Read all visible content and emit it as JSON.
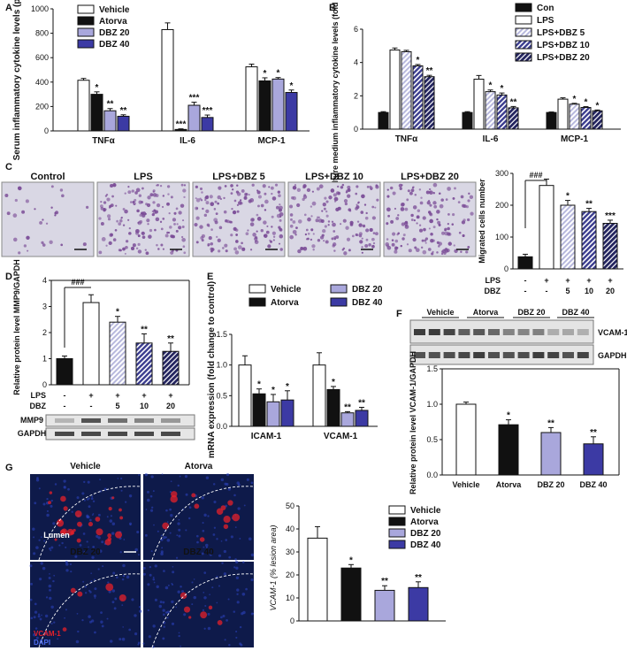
{
  "colors": {
    "white": "#ffffff",
    "black": "#111111",
    "light_purple": "#a9a7dc",
    "dark_purple": "#3c3aa4",
    "stripe_light": "#b7b8dd",
    "stripe_dark": "#3b3d8f",
    "micro_bg": "#d9d7e4",
    "micro_cell": "#7a4b96",
    "fluor_bg": "#0e1a4a",
    "fluor_red": "#e5202a"
  },
  "panels": {
    "A": {
      "letter": "A",
      "legend": [
        "Vehicle",
        "Atorva",
        "DBZ 20",
        "DBZ 40"
      ],
      "ylabel": "Serum inflammatory cytokine levels (pg/ml)",
      "ylim": [
        0,
        1000
      ],
      "yticks": [
        "0",
        "200",
        "400",
        "600",
        "800",
        "1000"
      ],
      "categories": [
        "TNFα",
        "IL-6",
        "MCP-1"
      ],
      "series": [
        {
          "name": "Vehicle",
          "values": [
            415,
            830,
            525
          ],
          "err": [
            15,
            55,
            22
          ],
          "stars": [
            "",
            "",
            ""
          ]
        },
        {
          "name": "Atorva",
          "values": [
            300,
            12,
            410
          ],
          "err": [
            20,
            5,
            25
          ],
          "stars": [
            "*",
            "***",
            "*"
          ]
        },
        {
          "name": "DBZ 20",
          "values": [
            165,
            210,
            425
          ],
          "err": [
            18,
            25,
            12
          ],
          "stars": [
            "**",
            "***",
            "*"
          ]
        },
        {
          "name": "DBZ 40",
          "values": [
            120,
            110,
            315
          ],
          "err": [
            12,
            20,
            20
          ],
          "stars": [
            "**",
            "***",
            "*"
          ]
        }
      ]
    },
    "B": {
      "letter": "B",
      "legend": [
        "Con",
        "LPS",
        "LPS+DBZ 5",
        "LPS+DBZ 10",
        "LPS+DBZ 20"
      ],
      "ylabel": "Culture medium inflammatory cytokine levels (fold change)",
      "ylim": [
        0,
        6
      ],
      "yticks": [
        "0",
        "2",
        "4",
        "6"
      ],
      "categories": [
        "TNFα",
        "IL-6",
        "MCP-1"
      ],
      "series": [
        {
          "name": "Con",
          "values": [
            1.0,
            1.0,
            1.0
          ],
          "err": [
            0.05,
            0.05,
            0.03
          ],
          "stars": [
            "",
            "",
            ""
          ]
        },
        {
          "name": "LPS",
          "values": [
            4.75,
            3.0,
            1.8
          ],
          "err": [
            0.12,
            0.22,
            0.08
          ],
          "stars": [
            "",
            "",
            ""
          ]
        },
        {
          "name": "LPS+DBZ 5",
          "values": [
            4.65,
            2.25,
            1.5
          ],
          "err": [
            0.08,
            0.1,
            0.05
          ],
          "stars": [
            "",
            "*",
            "*"
          ]
        },
        {
          "name": "LPS+DBZ 10",
          "values": [
            3.8,
            2.05,
            1.3
          ],
          "err": [
            0.08,
            0.12,
            0.05
          ],
          "stars": [
            "*",
            "*",
            "*"
          ]
        },
        {
          "name": "LPS+DBZ 20",
          "values": [
            3.15,
            1.28,
            1.1
          ],
          "err": [
            0.08,
            0.08,
            0.05
          ],
          "stars": [
            "**",
            "**",
            "*"
          ]
        }
      ]
    },
    "C": {
      "letter": "C",
      "image_labels": [
        "Control",
        "LPS",
        "LPS+DBZ 5",
        "LPS+DBZ 10",
        "LPS+DBZ 20"
      ],
      "ylabel": "Migrated cells number",
      "ylim": [
        0,
        300
      ],
      "yticks": [
        "0",
        "100",
        "200",
        "300"
      ],
      "values": [
        38,
        262,
        200,
        180,
        143
      ],
      "err": [
        8,
        20,
        15,
        10,
        10
      ],
      "stars": [
        "",
        "",
        "*",
        "**",
        "***"
      ],
      "hash": "###",
      "row_lps_label": "LPS",
      "row_dbz_label": "DBZ",
      "row_lps": [
        "-",
        "+",
        "+",
        "+",
        "+"
      ],
      "row_dbz": [
        "-",
        "-",
        "5",
        "10",
        "20"
      ]
    },
    "D": {
      "letter": "D",
      "ylabel": "Relative protein level MMP9/GAPDH",
      "ylim": [
        0,
        4
      ],
      "yticks": [
        "0",
        "1",
        "2",
        "3",
        "4"
      ],
      "values": [
        1.0,
        3.15,
        2.4,
        1.6,
        1.28
      ],
      "err": [
        0.1,
        0.3,
        0.22,
        0.35,
        0.32
      ],
      "stars": [
        "",
        "",
        "*",
        "**",
        "**"
      ],
      "hash": "###",
      "row_lps_label": "LPS",
      "row_dbz_label": "DBZ",
      "row_lps": [
        "-",
        "+",
        "+",
        "+",
        "+"
      ],
      "row_dbz": [
        "-",
        "-",
        "5",
        "10",
        "20"
      ],
      "blot_labels": [
        "MMP9",
        "GAPDH"
      ]
    },
    "E": {
      "letter": "E",
      "legend": [
        "Vehicle",
        "Atorva",
        "DBZ 20",
        "DBZ 40"
      ],
      "ylabel": "mRNA expression (fold change to control)",
      "ylim": [
        0,
        1.5
      ],
      "yticks": [
        "0.0",
        "0.5",
        "1.0",
        "1.5"
      ],
      "categories": [
        "ICAM-1",
        "VCAM-1"
      ],
      "series": [
        {
          "name": "Vehicle",
          "values": [
            1.0,
            1.0
          ],
          "err": [
            0.15,
            0.2
          ],
          "stars": [
            "",
            ""
          ]
        },
        {
          "name": "Atorva",
          "values": [
            0.53,
            0.6
          ],
          "err": [
            0.08,
            0.05
          ],
          "stars": [
            "*",
            "*"
          ]
        },
        {
          "name": "DBZ 20",
          "values": [
            0.4,
            0.22
          ],
          "err": [
            0.12,
            0.02
          ],
          "stars": [
            "*",
            "**"
          ]
        },
        {
          "name": "DBZ 40",
          "values": [
            0.43,
            0.26
          ],
          "err": [
            0.15,
            0.05
          ],
          "stars": [
            "*",
            "**"
          ]
        }
      ]
    },
    "F": {
      "letter": "F",
      "blot_groups": [
        "Vehicle",
        "Atorva",
        "DBZ 20",
        "DBZ 40"
      ],
      "blot_labels": [
        "VCAM-1",
        "GAPDH"
      ],
      "ylabel": "Relative protein level VCAM-1/GAPDH",
      "ylim": [
        0,
        1.5
      ],
      "yticks": [
        "0.0",
        "0.5",
        "1.0",
        "1.5"
      ],
      "categories": [
        "Vehicle",
        "Atorva",
        "DBZ 20",
        "DBZ 40"
      ],
      "values": [
        1.0,
        0.71,
        0.6,
        0.44
      ],
      "err": [
        0.03,
        0.07,
        0.07,
        0.1
      ],
      "stars": [
        "",
        "*",
        "**",
        "**"
      ]
    },
    "G": {
      "letter": "G",
      "image_labels": [
        "Vehicle",
        "Atorva",
        "DBZ 20",
        "DBZ 40"
      ],
      "lumen_label": "Lumen",
      "stain_labels": [
        "VCAM-1",
        "DAPI"
      ],
      "legend": [
        "Vehicle",
        "Atorva",
        "DBZ 20",
        "DBZ 40"
      ],
      "ylabel": "VCAM-1 (% lesion area)",
      "ylim": [
        0,
        50
      ],
      "yticks": [
        "0",
        "10",
        "20",
        "30",
        "40",
        "50"
      ],
      "values": [
        36,
        23,
        13.3,
        14.5
      ],
      "err": [
        5,
        1.5,
        2,
        2.5
      ],
      "stars": [
        "",
        "*",
        "**",
        "**"
      ]
    }
  },
  "chart_data": [
    {
      "type": "bar",
      "panel": "A",
      "categories": [
        "TNFα",
        "IL-6",
        "MCP-1"
      ],
      "series": [
        {
          "name": "Vehicle",
          "values": [
            415,
            830,
            525
          ]
        },
        {
          "name": "Atorva",
          "values": [
            300,
            12,
            410
          ]
        },
        {
          "name": "DBZ 20",
          "values": [
            165,
            210,
            425
          ]
        },
        {
          "name": "DBZ 40",
          "values": [
            120,
            110,
            315
          ]
        }
      ],
      "ylabel": "Serum inflammatory cytokine levels (pg/ml)",
      "ylim": [
        0,
        1000
      ]
    },
    {
      "type": "bar",
      "panel": "B",
      "categories": [
        "TNFα",
        "IL-6",
        "MCP-1"
      ],
      "series": [
        {
          "name": "Con",
          "values": [
            1.0,
            1.0,
            1.0
          ]
        },
        {
          "name": "LPS",
          "values": [
            4.75,
            3.0,
            1.8
          ]
        },
        {
          "name": "LPS+DBZ 5",
          "values": [
            4.65,
            2.25,
            1.5
          ]
        },
        {
          "name": "LPS+DBZ 10",
          "values": [
            3.8,
            2.05,
            1.3
          ]
        },
        {
          "name": "LPS+DBZ 20",
          "values": [
            3.15,
            1.28,
            1.1
          ]
        }
      ],
      "ylabel": "Culture medium inflammatory cytokine levels (fold change)",
      "ylim": [
        0,
        6
      ]
    },
    {
      "type": "bar",
      "panel": "C",
      "values": [
        38,
        262,
        200,
        180,
        143
      ],
      "ylabel": "Migrated cells number",
      "ylim": [
        0,
        300
      ]
    },
    {
      "type": "bar",
      "panel": "D",
      "values": [
        1.0,
        3.15,
        2.4,
        1.6,
        1.28
      ],
      "ylabel": "Relative protein level MMP9/GAPDH",
      "ylim": [
        0,
        4
      ]
    },
    {
      "type": "bar",
      "panel": "E",
      "categories": [
        "ICAM-1",
        "VCAM-1"
      ],
      "series": [
        {
          "name": "Vehicle",
          "values": [
            1.0,
            1.0
          ]
        },
        {
          "name": "Atorva",
          "values": [
            0.53,
            0.6
          ]
        },
        {
          "name": "DBZ 20",
          "values": [
            0.4,
            0.22
          ]
        },
        {
          "name": "DBZ 40",
          "values": [
            0.43,
            0.26
          ]
        }
      ],
      "ylabel": "mRNA expression (fold change to control)",
      "ylim": [
        0,
        1.5
      ]
    },
    {
      "type": "bar",
      "panel": "F",
      "categories": [
        "Vehicle",
        "Atorva",
        "DBZ 20",
        "DBZ 40"
      ],
      "values": [
        1.0,
        0.71,
        0.6,
        0.44
      ],
      "ylabel": "Relative protein level VCAM-1/GAPDH",
      "ylim": [
        0,
        1.5
      ]
    },
    {
      "type": "bar",
      "panel": "G",
      "categories": [
        "Vehicle",
        "Atorva",
        "DBZ 20",
        "DBZ 40"
      ],
      "values": [
        36,
        23,
        13.3,
        14.5
      ],
      "ylabel": "VCAM-1 (% lesion area)",
      "ylim": [
        0,
        50
      ]
    }
  ]
}
